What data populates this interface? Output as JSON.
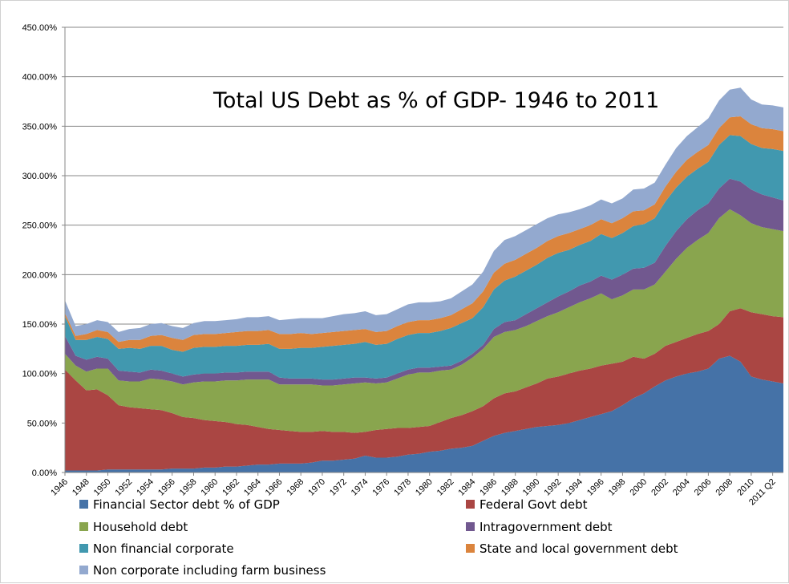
{
  "chart_data": {
    "type": "area",
    "stacked": true,
    "title": "Total US Debt as % of GDP- 1946 to 2011",
    "xlabel": "",
    "ylabel": "",
    "ylim": [
      0,
      450
    ],
    "yticks": [
      "0.00%",
      "50.00%",
      "100.00%",
      "150.00%",
      "200.00%",
      "250.00%",
      "300.00%",
      "350.00%",
      "400.00%",
      "450.00%"
    ],
    "grid": "horizontal",
    "legend_position": "bottom",
    "x": [
      "1946",
      "1947",
      "1948",
      "1949",
      "1950",
      "1951",
      "1952",
      "1953",
      "1954",
      "1955",
      "1956",
      "1957",
      "1958",
      "1959",
      "1960",
      "1961",
      "1962",
      "1963",
      "1964",
      "1965",
      "1966",
      "1967",
      "1968",
      "1969",
      "1970",
      "1971",
      "1972",
      "1973",
      "1974",
      "1975",
      "1976",
      "1977",
      "1978",
      "1979",
      "1980",
      "1981",
      "1982",
      "1983",
      "1984",
      "1985",
      "1986",
      "1987",
      "1988",
      "1989",
      "1990",
      "1991",
      "1992",
      "1993",
      "1994",
      "1995",
      "1996",
      "1997",
      "1998",
      "1999",
      "2000",
      "2001",
      "2002",
      "2003",
      "2004",
      "2005",
      "2006",
      "2007",
      "2008",
      "2009",
      "2010",
      "2011 Q1",
      "2011 Q2",
      "2011 Q3"
    ],
    "x_tick_labels": [
      "1946",
      "1948",
      "1950",
      "1952",
      "1954",
      "1956",
      "1958",
      "1960",
      "1962",
      "1964",
      "1966",
      "1968",
      "1970",
      "1972",
      "1974",
      "1976",
      "1978",
      "1980",
      "1982",
      "1984",
      "1986",
      "1988",
      "1990",
      "1992",
      "1994",
      "1996",
      "1998",
      "2000",
      "2002",
      "2004",
      "2006",
      "2008",
      "2010",
      "2011 Q2"
    ],
    "series": [
      {
        "name": "Financial Sector debt % of GDP",
        "color": "#4572A7",
        "values": [
          2,
          2,
          2,
          2,
          3,
          3,
          3,
          3,
          3,
          3,
          4,
          4,
          4,
          5,
          5,
          6,
          6,
          7,
          8,
          8,
          9,
          9,
          9,
          10,
          12,
          12,
          13,
          14,
          17,
          15,
          15,
          16,
          18,
          19,
          21,
          22,
          24,
          25,
          27,
          32,
          37,
          40,
          42,
          44,
          46,
          47,
          48,
          50,
          53,
          56,
          59,
          62,
          68,
          75,
          80,
          87,
          93,
          97,
          100,
          102,
          105,
          115,
          118,
          112,
          97,
          94,
          92,
          90
        ],
        "totals": [
          104,
          93,
          83,
          84,
          78,
          68,
          66,
          65,
          64,
          63,
          60,
          56,
          55,
          53,
          52,
          51,
          49,
          48,
          46,
          44,
          43,
          42,
          41,
          41,
          42,
          41,
          41,
          40,
          41,
          43,
          44,
          45,
          45,
          46,
          47,
          51,
          55,
          58,
          62,
          67,
          75,
          80,
          82,
          86,
          90,
          95,
          97,
          100,
          103,
          105,
          108,
          110,
          112,
          117,
          115,
          120,
          128,
          132,
          136,
          140,
          143,
          150,
          163,
          166,
          162,
          160,
          158,
          157
        ]
      },
      {
        "name": "Federal Govt debt",
        "color": "#AA4643",
        "values": [
          102,
          91,
          81,
          82,
          75,
          65,
          63,
          62,
          61,
          60,
          56,
          52,
          51,
          48,
          47,
          45,
          43,
          41,
          38,
          36,
          34,
          33,
          32,
          31,
          30,
          29,
          28,
          26,
          24,
          28,
          29,
          29,
          27,
          27,
          26,
          29,
          31,
          33,
          35,
          35,
          38,
          40,
          40,
          42,
          44,
          48,
          49,
          50,
          50,
          49,
          49,
          48,
          44,
          42,
          35,
          33,
          35,
          35,
          36,
          38,
          38,
          35,
          45,
          54,
          65,
          66,
          66,
          67
        ]
      },
      {
        "name": "Household debt",
        "color": "#89A54E",
        "values": [
          16,
          15,
          19,
          21,
          27,
          25,
          26,
          27,
          31,
          31,
          32,
          33,
          36,
          39,
          40,
          42,
          44,
          46,
          48,
          50,
          46,
          47,
          48,
          48,
          46,
          47,
          48,
          50,
          50,
          47,
          47,
          50,
          54,
          55,
          54,
          52,
          49,
          51,
          54,
          58,
          62,
          62,
          62,
          62,
          63,
          63,
          65,
          67,
          69,
          71,
          73,
          65,
          67,
          68,
          70,
          70,
          75,
          84,
          91,
          95,
          99,
          107,
          103,
          94,
          90,
          88,
          88,
          87
        ]
      },
      {
        "name": "Intragovernment debt",
        "color": "#71588F",
        "values": [
          18,
          10,
          12,
          12,
          10,
          10,
          10,
          9,
          9,
          9,
          8,
          8,
          8,
          8,
          8,
          8,
          8,
          8,
          8,
          8,
          7,
          6,
          6,
          6,
          6,
          6,
          6,
          6,
          5,
          5,
          5,
          5,
          5,
          5,
          5,
          4,
          4,
          4,
          4,
          4,
          8,
          10,
          10,
          12,
          13,
          14,
          16,
          16,
          17,
          17,
          18,
          20,
          21,
          21,
          22,
          22,
          26,
          28,
          29,
          30,
          30,
          30,
          31,
          34,
          34,
          33,
          32,
          31
        ]
      },
      {
        "name": "Non financial corporate",
        "color": "#4198AF",
        "values": [
          20,
          16,
          20,
          20,
          20,
          22,
          24,
          24,
          24,
          25,
          24,
          25,
          27,
          27,
          27,
          27,
          27,
          27,
          27,
          28,
          29,
          30,
          31,
          31,
          33,
          34,
          34,
          34,
          36,
          34,
          34,
          35,
          35,
          35,
          35,
          36,
          38,
          38,
          36,
          38,
          40,
          42,
          44,
          44,
          44,
          45,
          44,
          42,
          41,
          41,
          42,
          42,
          42,
          43,
          44,
          45,
          45,
          44,
          43,
          42,
          42,
          44,
          44,
          46,
          46,
          47,
          49,
          50
        ]
      },
      {
        "name": "State and local government debt",
        "color": "#DB843D",
        "values": [
          3,
          4,
          6,
          7,
          7,
          7,
          8,
          9,
          10,
          11,
          12,
          12,
          13,
          13,
          13,
          13,
          14,
          14,
          14,
          14,
          15,
          15,
          15,
          14,
          14,
          14,
          14,
          14,
          13,
          13,
          13,
          13,
          13,
          13,
          13,
          13,
          13,
          14,
          15,
          16,
          17,
          17,
          17,
          17,
          17,
          17,
          17,
          17,
          16,
          16,
          15,
          15,
          15,
          15,
          14,
          14,
          15,
          16,
          17,
          17,
          17,
          17,
          18,
          20,
          20,
          20,
          20,
          20
        ]
      },
      {
        "name": "Non corporate including farm business",
        "color": "#93A9CF",
        "values": [
          13,
          10,
          10,
          10,
          10,
          10,
          11,
          12,
          12,
          12,
          12,
          12,
          12,
          13,
          13,
          13,
          13,
          14,
          14,
          14,
          14,
          15,
          15,
          16,
          15,
          16,
          17,
          17,
          18,
          17,
          17,
          17,
          18,
          18,
          18,
          17,
          17,
          18,
          19,
          20,
          22,
          24,
          24,
          24,
          24,
          23,
          22,
          21,
          20,
          20,
          20,
          20,
          20,
          22,
          22,
          22,
          22,
          24,
          24,
          25,
          27,
          28,
          28,
          29,
          25,
          24,
          24,
          24
        ]
      }
    ]
  }
}
